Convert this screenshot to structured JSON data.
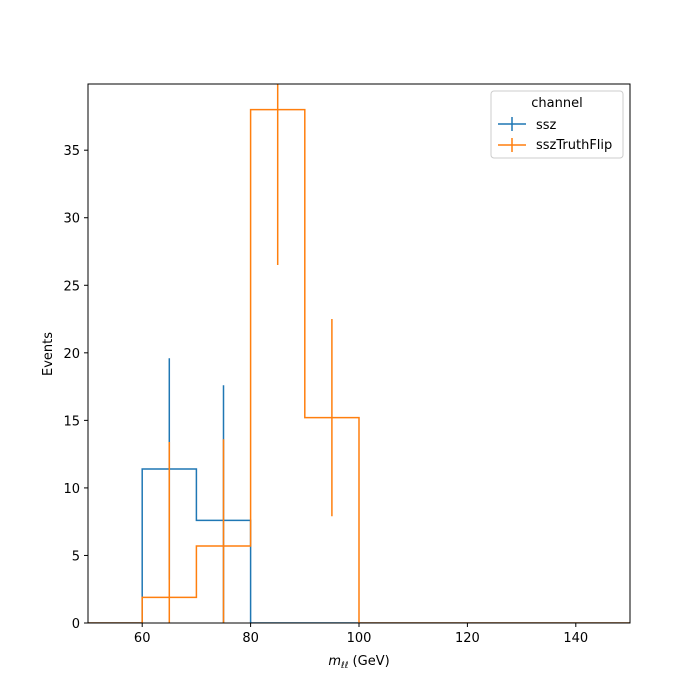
{
  "chart_data": {
    "type": "histogram-step",
    "xlabel_main": "m",
    "xlabel_sub": "ℓℓ",
    "xlabel_unit": " (GeV)",
    "ylabel": "Events",
    "xlim": [
      50,
      150
    ],
    "ylim": [
      0,
      39.9
    ],
    "xticks": [
      60,
      80,
      100,
      120,
      140
    ],
    "yticks": [
      0,
      5,
      10,
      15,
      20,
      25,
      30,
      35
    ],
    "legend": {
      "title": "channel",
      "placement": "top-right"
    },
    "series": [
      {
        "name": "ssz",
        "color": "#1f77b4",
        "edges": [
          50,
          60,
          70,
          80,
          90,
          100,
          110,
          120,
          130,
          140,
          150
        ],
        "values": [
          0,
          11.4,
          7.6,
          0,
          0,
          0,
          0,
          0,
          0,
          0
        ],
        "errors": [
          0,
          8.2,
          10.0,
          0,
          0,
          0,
          0,
          0,
          0,
          0
        ]
      },
      {
        "name": "sszTruthFlip",
        "color": "#ff7f0e",
        "edges": [
          50,
          60,
          70,
          80,
          90,
          100,
          110,
          120,
          130,
          140,
          150
        ],
        "values": [
          0,
          1.9,
          5.7,
          38.0,
          15.2,
          0,
          0,
          0,
          0,
          0
        ],
        "errors": [
          0,
          11.5,
          7.9,
          11.5,
          7.3,
          0,
          0,
          0,
          0,
          0
        ]
      }
    ]
  }
}
